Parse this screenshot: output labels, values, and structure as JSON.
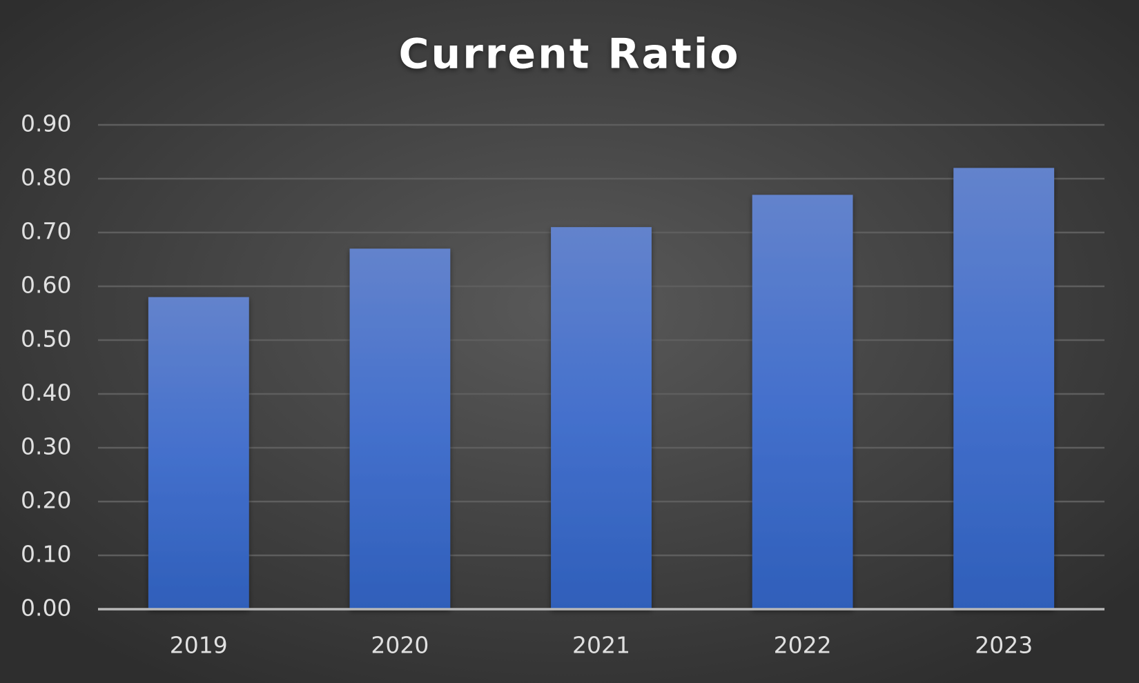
{
  "chart_data": {
    "type": "bar",
    "title": "Current Ratio",
    "categories": [
      "2019",
      "2020",
      "2021",
      "2022",
      "2023"
    ],
    "values": [
      0.58,
      0.67,
      0.71,
      0.77,
      0.82
    ],
    "color": "#4472c4",
    "ylim": [
      0,
      0.9
    ],
    "yticks": [
      {
        "value": 0,
        "label": "0.00"
      },
      {
        "value": 0.1,
        "label": "0.10"
      },
      {
        "value": 0.2,
        "label": "0.20"
      },
      {
        "value": 0.3,
        "label": "0.30"
      },
      {
        "value": 0.4,
        "label": "0.40"
      },
      {
        "value": 0.5,
        "label": "0.50"
      },
      {
        "value": 0.6,
        "label": "0.60"
      },
      {
        "value": 0.7,
        "label": "0.70"
      },
      {
        "value": 0.8,
        "label": "0.80"
      },
      {
        "value": 0.9,
        "label": "0.90"
      }
    ],
    "grid": true
  }
}
